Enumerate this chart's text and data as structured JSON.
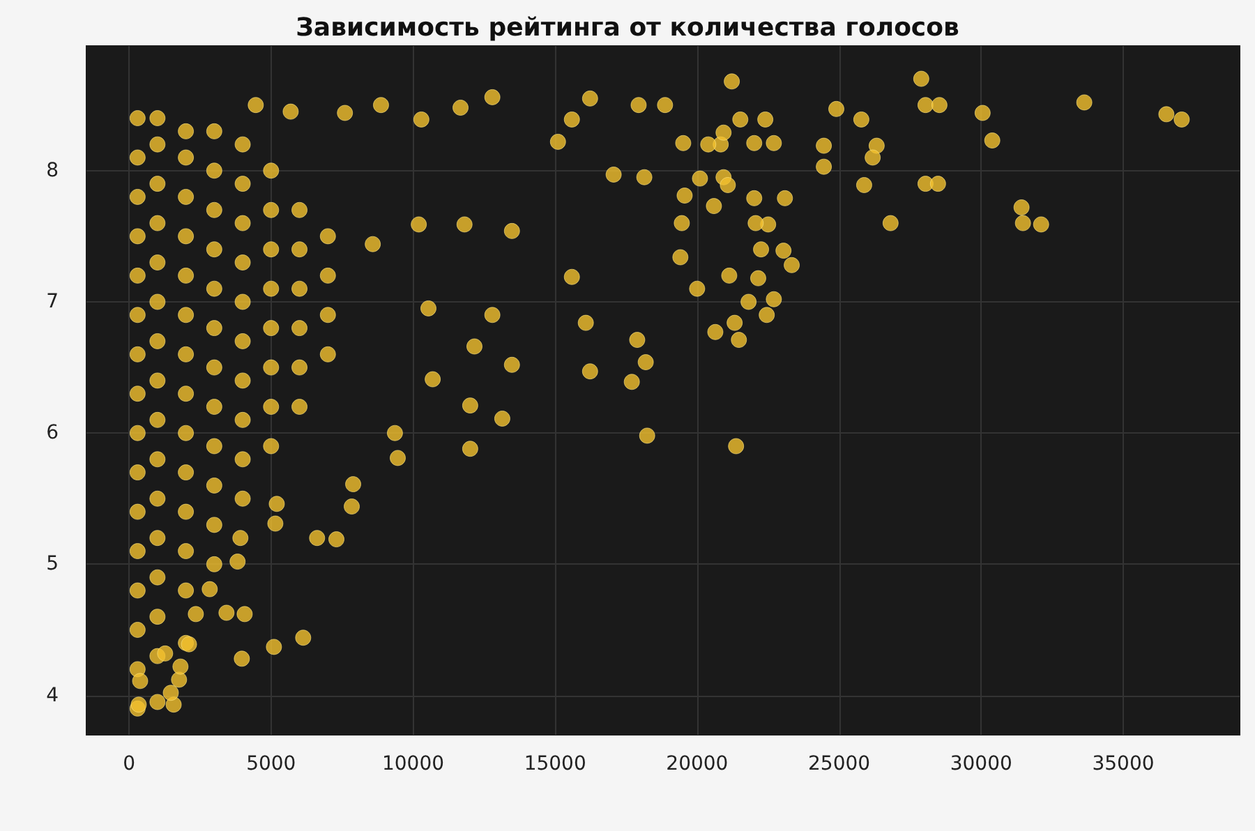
{
  "chart_data": {
    "type": "scatter",
    "title": "Зависимость рейтинга от количества голосов",
    "xlim": [
      -1500,
      39100
    ],
    "xticks": [
      0,
      5000,
      10000,
      15000,
      20000,
      25000,
      30000,
      35000
    ],
    "ylim": [
      3.7,
      8.95
    ],
    "yticks": [
      4,
      5,
      6,
      7,
      8
    ],
    "grid": true,
    "marker": "circle",
    "series": [
      {
        "color": "#f2c12e",
        "x": [
          300,
          300,
          300,
          300,
          300,
          300,
          300,
          300,
          300,
          300,
          300,
          300,
          300,
          300,
          300,
          300,
          1000,
          1000,
          1000,
          1000,
          1000,
          1000,
          1000,
          1000,
          1000,
          1000,
          1000,
          1000,
          1000,
          1000,
          1000,
          1000,
          2000,
          2000,
          2000,
          2000,
          2000,
          2000,
          2000,
          2000,
          2000,
          2000,
          2000,
          2000,
          2000,
          2000,
          3000,
          3000,
          3000,
          3000,
          3000,
          3000,
          3000,
          3000,
          3000,
          3000,
          3000,
          3000,
          4000,
          4000,
          4000,
          4000,
          4000,
          4000,
          4000,
          4000,
          4000,
          4000,
          5000,
          5000,
          5000,
          5000,
          5000,
          5000,
          5000,
          5000,
          6000,
          6000,
          6000,
          6000,
          6000,
          6000,
          7000,
          7000,
          7000,
          7000,
          36520,
          37060,
          33630,
          31420,
          31470,
          32110,
          30050,
          30390,
          27890,
          28040,
          28530,
          28040,
          28480,
          26810,
          24900,
          25780,
          26320,
          26180,
          24460,
          24460,
          25880,
          21220,
          21370,
          18240,
          20830,
          20100,
          17940,
          18870,
          21520,
          22400,
          22700,
          20390,
          19510,
          22010,
          20930,
          20930,
          18140,
          20590,
          21080,
          22010,
          23090,
          22500,
          22060,
          22250,
          23330,
          23040,
          19560,
          19460,
          19410,
          21130,
          22150,
          21810,
          22700,
          20000,
          20640,
          21320,
          21470,
          22450,
          17890,
          18190,
          17700,
          12790,
          8870,
          16230,
          11670,
          10290,
          4460,
          5690,
          7600,
          15590,
          17060,
          15100,
          13480,
          11810,
          15590,
          12790,
          16080,
          12160,
          13480,
          16230,
          12010,
          13140,
          10690,
          9360,
          10540,
          8580,
          10200,
          12010,
          9460,
          7890,
          7300,
          6620,
          7840,
          5200,
          5150,
          6130,
          5100,
          3970,
          3430,
          4070,
          2350,
          2840,
          3820,
          3920,
          1570,
          340,
          1470,
          1760,
          2110,
          1810,
          1270,
          390
        ],
        "values": [
          3.9,
          4.2,
          4.5,
          4.8,
          5.1,
          5.4,
          5.7,
          6.0,
          6.3,
          6.6,
          6.9,
          7.2,
          7.5,
          7.8,
          8.1,
          8.4,
          3.95,
          4.3,
          4.6,
          4.9,
          5.2,
          5.5,
          5.8,
          6.1,
          6.4,
          6.7,
          7.0,
          7.3,
          7.6,
          7.9,
          8.2,
          8.4,
          4.4,
          4.8,
          5.1,
          5.4,
          5.7,
          6.0,
          6.3,
          6.6,
          6.9,
          7.2,
          7.5,
          7.8,
          8.1,
          8.3,
          5.0,
          5.3,
          5.6,
          5.9,
          6.2,
          6.5,
          6.8,
          7.1,
          7.4,
          7.7,
          8.0,
          8.3,
          5.5,
          5.8,
          6.1,
          6.4,
          6.7,
          7.0,
          7.3,
          7.6,
          7.9,
          8.2,
          5.9,
          6.2,
          6.5,
          6.8,
          7.1,
          7.4,
          7.7,
          8.0,
          6.2,
          6.5,
          6.8,
          7.1,
          7.4,
          7.7,
          6.6,
          6.9,
          7.2,
          7.5,
          8.43,
          8.39,
          8.52,
          7.72,
          7.6,
          7.59,
          8.44,
          8.23,
          8.7,
          8.5,
          8.5,
          7.9,
          7.9,
          7.6,
          8.47,
          8.39,
          8.19,
          8.1,
          8.19,
          8.03,
          7.89,
          8.68,
          5.9,
          5.98,
          8.2,
          7.94,
          8.5,
          8.5,
          8.39,
          8.39,
          8.21,
          8.2,
          8.21,
          8.21,
          8.29,
          7.95,
          7.95,
          7.73,
          7.89,
          7.79,
          7.79,
          7.59,
          7.6,
          7.4,
          7.28,
          7.39,
          7.81,
          7.6,
          7.34,
          7.2,
          7.18,
          7.0,
          7.02,
          7.1,
          6.77,
          6.84,
          6.71,
          6.9,
          6.71,
          6.54,
          6.39,
          8.56,
          8.5,
          8.55,
          8.48,
          8.39,
          8.5,
          8.45,
          8.44,
          8.39,
          7.97,
          8.22,
          7.54,
          7.59,
          7.19,
          6.9,
          6.84,
          6.66,
          6.52,
          6.47,
          6.21,
          6.11,
          6.41,
          6.0,
          6.95,
          7.44,
          7.59,
          5.88,
          5.81,
          5.61,
          5.19,
          5.2,
          5.44,
          5.46,
          5.31,
          4.44,
          4.37,
          4.28,
          4.63,
          4.62,
          4.62,
          4.81,
          5.02,
          5.2,
          3.93,
          3.93,
          4.02,
          4.12,
          4.39,
          4.22,
          4.32,
          4.11
        ]
      }
    ]
  }
}
